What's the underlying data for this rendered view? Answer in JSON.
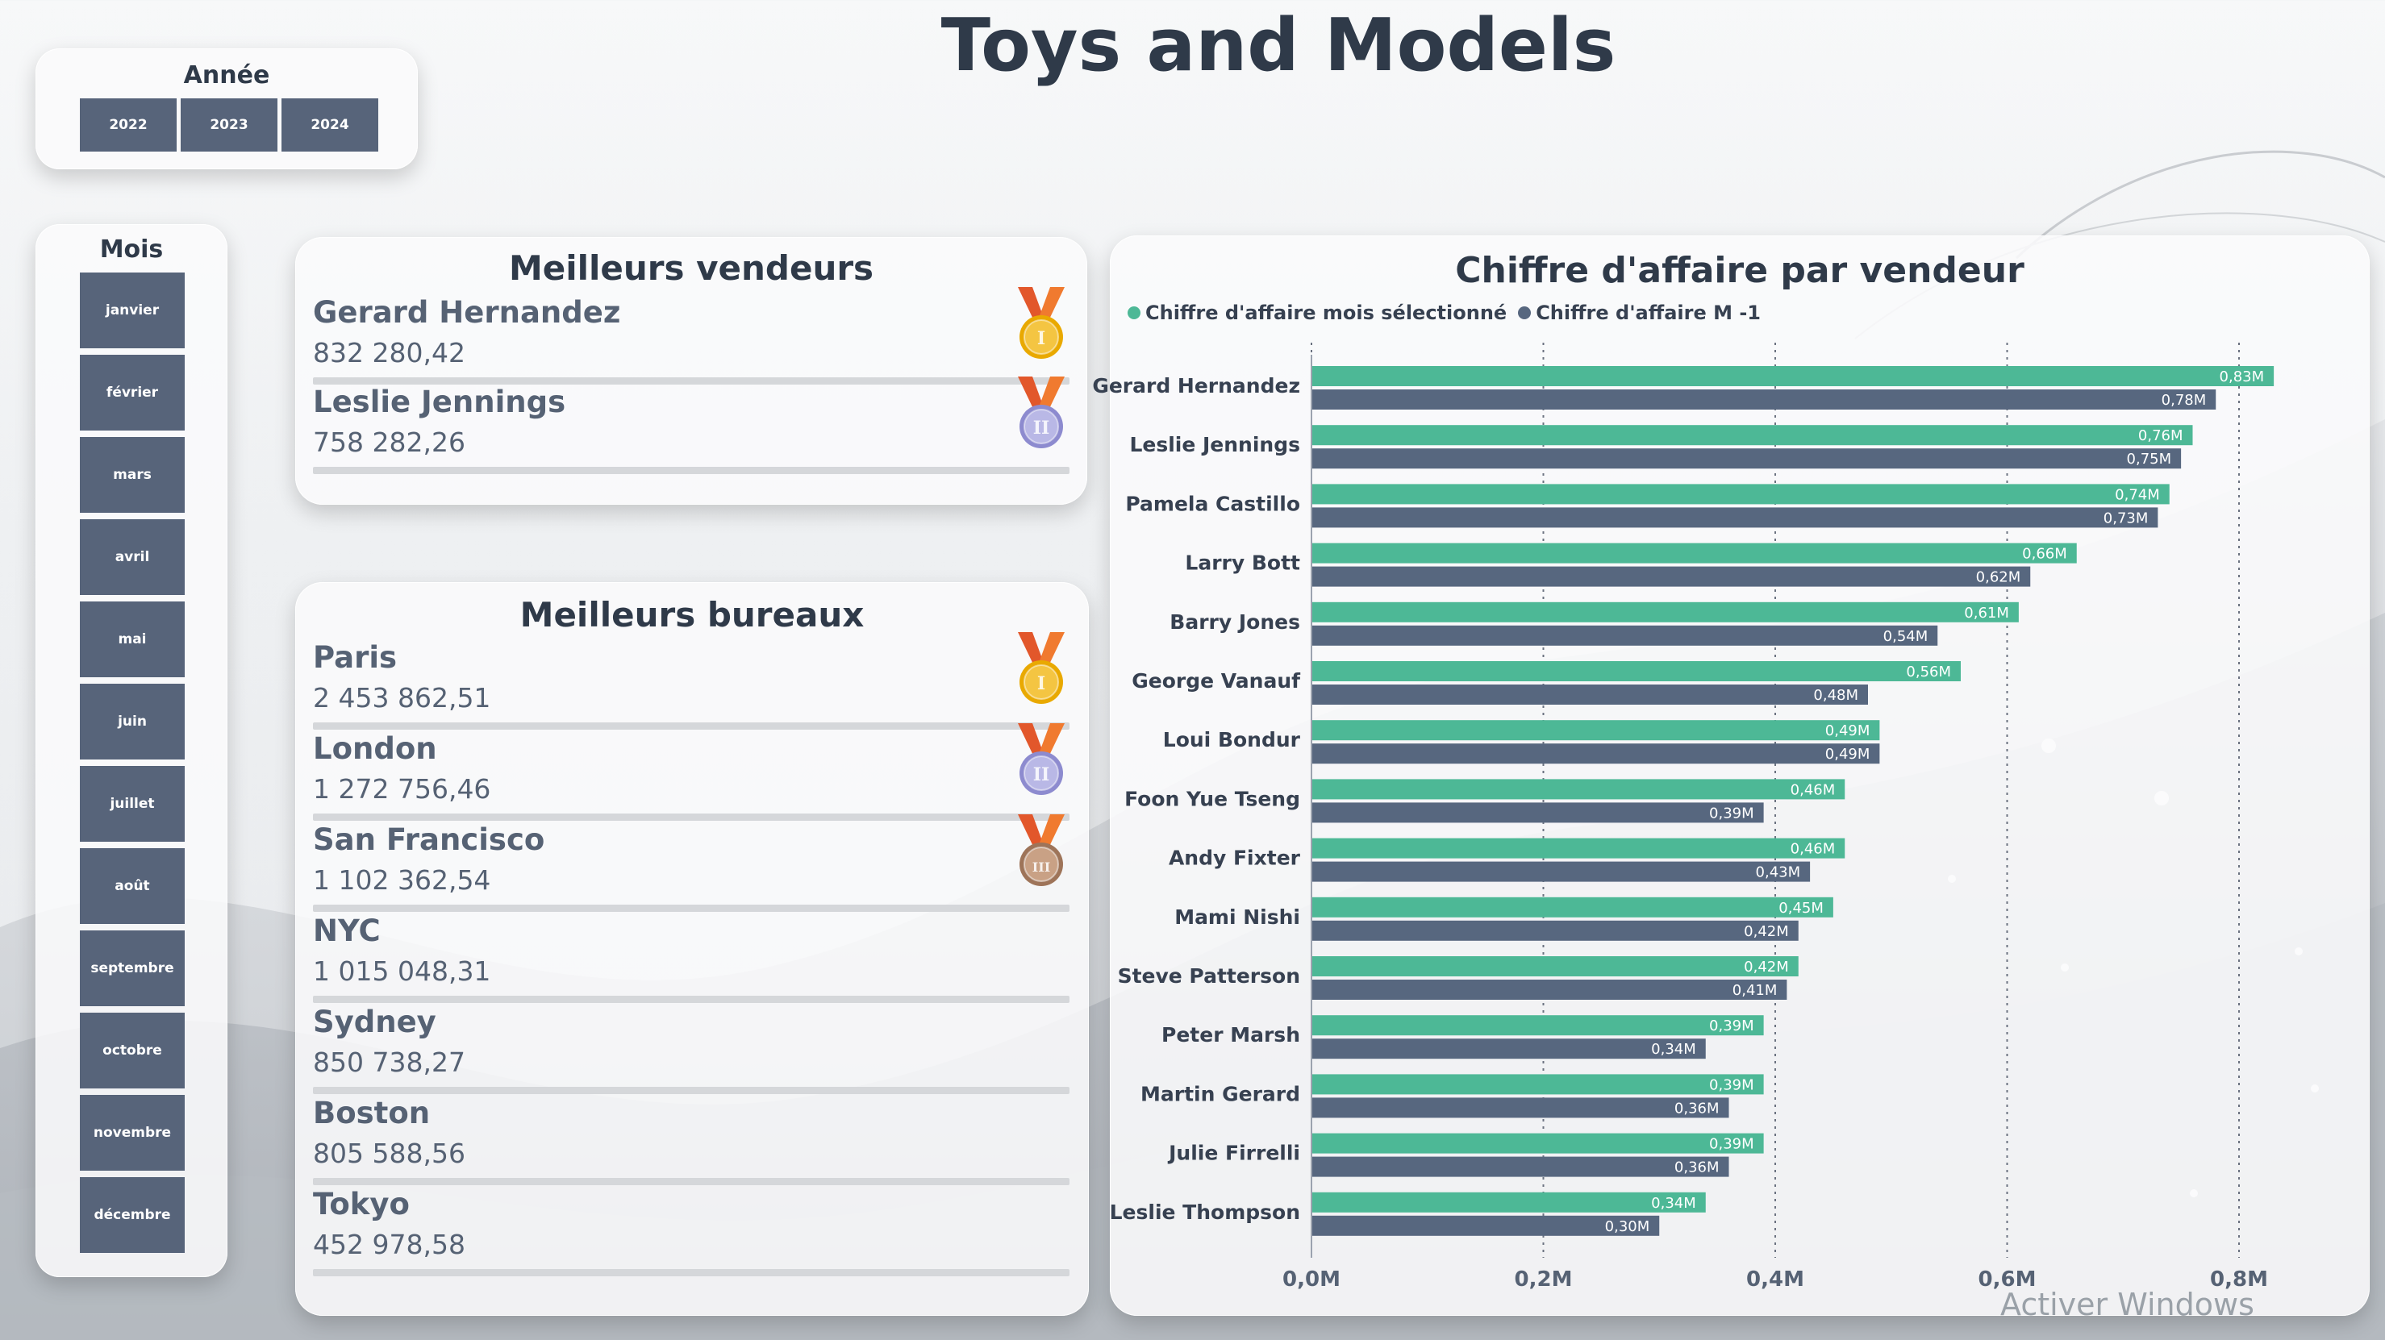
{
  "title": "Toys and Models",
  "year_slicer": {
    "title": "Année",
    "options": [
      "2022",
      "2023",
      "2024"
    ]
  },
  "month_slicer": {
    "title": "Mois",
    "options": [
      "janvier",
      "février",
      "mars",
      "avril",
      "mai",
      "juin",
      "juillet",
      "août",
      "septembre",
      "octobre",
      "novembre",
      "décembre"
    ]
  },
  "best_sellers": {
    "title": "Meilleurs vendeurs",
    "items": [
      {
        "name": "Gerard Hernandez",
        "value": "832 280,42",
        "medal": "gold-medal-icon"
      },
      {
        "name": "Leslie Jennings",
        "value": "758 282,26",
        "medal": "silver-medal-icon"
      }
    ]
  },
  "best_offices": {
    "title": "Meilleurs bureaux",
    "items": [
      {
        "name": "Paris",
        "value": "2 453 862,51",
        "medal": "gold-medal-icon"
      },
      {
        "name": "London",
        "value": "1 272 756,46",
        "medal": "silver-medal-icon"
      },
      {
        "name": "San Francisco",
        "value": "1 102 362,54",
        "medal": "bronze-medal-icon"
      },
      {
        "name": "NYC",
        "value": "1 015 048,31",
        "medal": ""
      },
      {
        "name": "Sydney",
        "value": "850 738,27",
        "medal": ""
      },
      {
        "name": "Boston",
        "value": "805 588,56",
        "medal": ""
      },
      {
        "name": "Tokyo",
        "value": "452 978,58",
        "medal": ""
      }
    ]
  },
  "chart_data": {
    "type": "bar",
    "orientation": "horizontal",
    "title": "Chiffre d'affaire par vendeur",
    "categories": [
      "Gerard Hernandez",
      "Leslie Jennings",
      "Pamela Castillo",
      "Larry Bott",
      "Barry Jones",
      "George Vanauf",
      "Loui Bondur",
      "Foon Yue Tseng",
      "Andy Fixter",
      "Mami Nishi",
      "Steve Patterson",
      "Peter Marsh",
      "Martin Gerard",
      "Julie Firrelli",
      "Leslie Thompson"
    ],
    "series": [
      {
        "name": "Chiffre d'affaire mois sélectionné",
        "color": "#4db896",
        "values": [
          0.83,
          0.76,
          0.74,
          0.66,
          0.61,
          0.56,
          0.49,
          0.46,
          0.46,
          0.45,
          0.42,
          0.39,
          0.39,
          0.39,
          0.34
        ],
        "labels": [
          "0,83M",
          "0,76M",
          "0,74M",
          "0,66M",
          "0,61M",
          "0,56M",
          "0,49M",
          "0,46M",
          "0,46M",
          "0,45M",
          "0,42M",
          "0,39M",
          "0,39M",
          "0,39M",
          "0,34M"
        ]
      },
      {
        "name": "Chiffre d'affaire M -1",
        "color": "#57677f",
        "values": [
          0.78,
          0.75,
          0.73,
          0.62,
          0.54,
          0.48,
          0.49,
          0.39,
          0.43,
          0.42,
          0.41,
          0.34,
          0.36,
          0.36,
          0.3
        ],
        "labels": [
          "0,78M",
          "0,75M",
          "0,73M",
          "0,62M",
          "0,54M",
          "0,48M",
          "0,49M",
          "0,39M",
          "0,43M",
          "0,42M",
          "0,41M",
          "0,34M",
          "0,36M",
          "0,36M",
          "0,30M"
        ]
      }
    ],
    "x_ticks": [
      0,
      0.2,
      0.4,
      0.6,
      0.8
    ],
    "x_tick_labels": [
      "0,0M",
      "0,2M",
      "0,4M",
      "0,6M",
      "0,8M"
    ],
    "xlim": [
      0,
      0.8
    ],
    "grid": true,
    "legend_position": "top-left"
  },
  "watermark": "Activer Windows"
}
